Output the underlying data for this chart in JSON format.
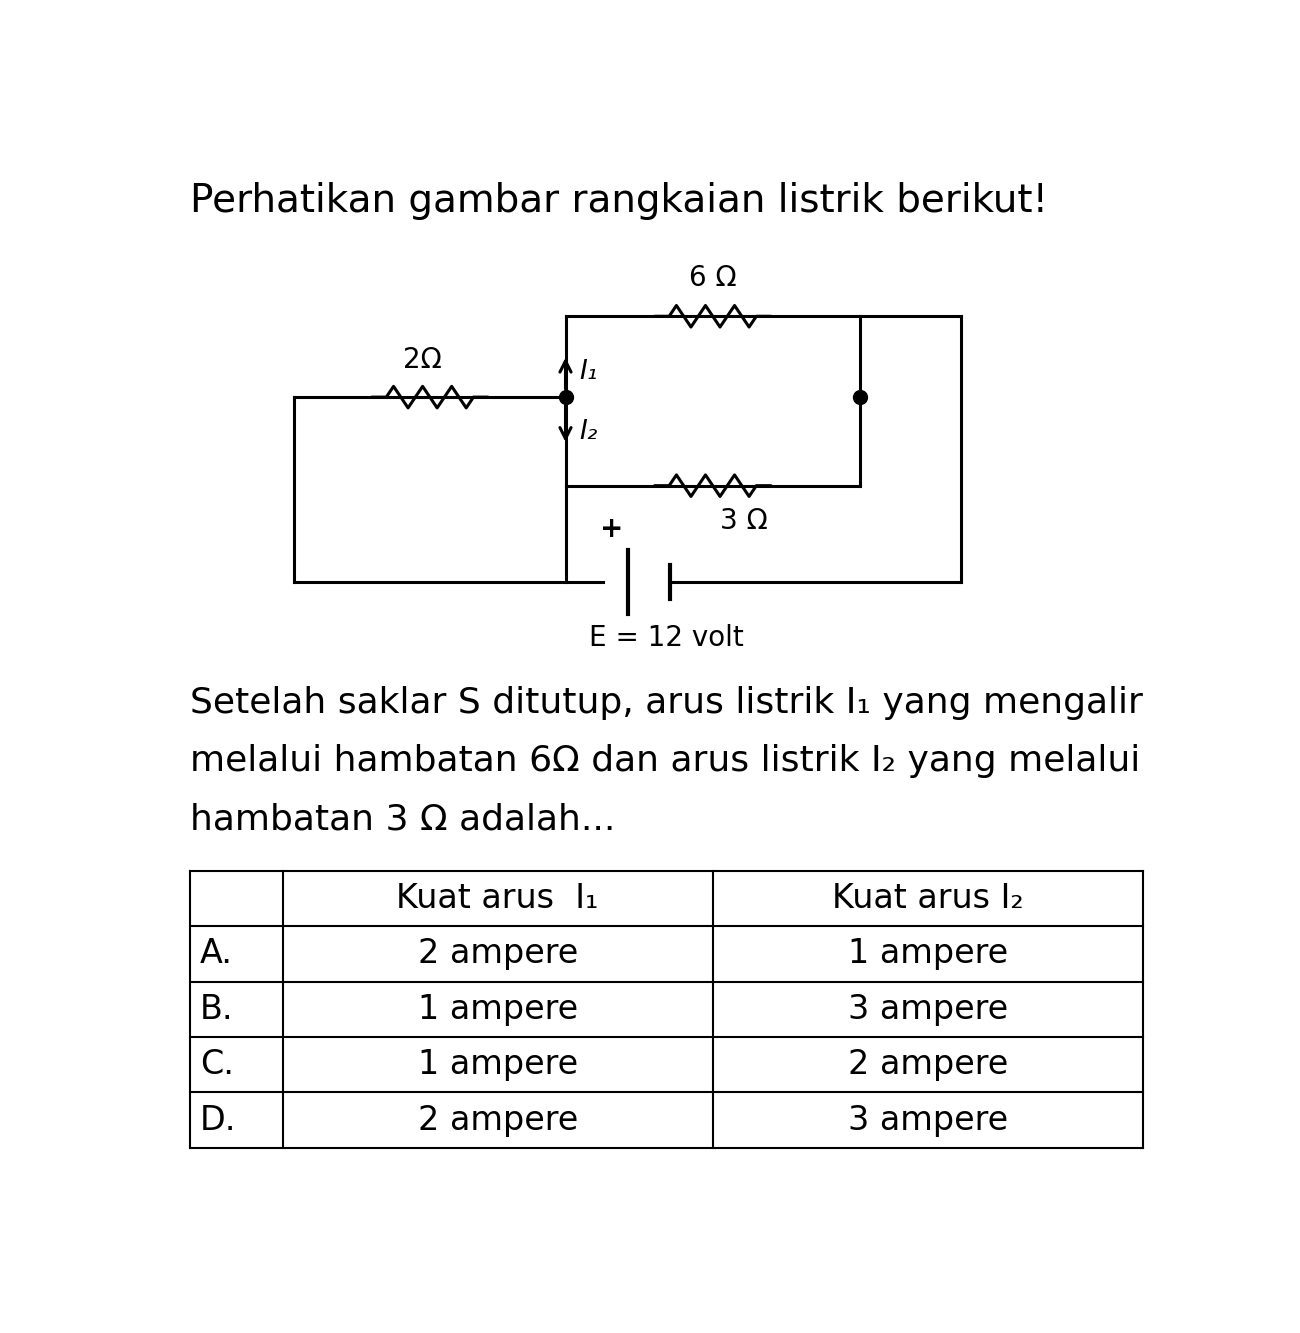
{
  "title": "Perhatikan gambar rangkaian listrik berikut!",
  "title_fontsize": 28,
  "question_fontsize": 26,
  "table_header": [
    "",
    "Kuat arus  I₁",
    "Kuat arus I₂"
  ],
  "table_rows": [
    [
      "A.",
      "2 ampere",
      "1 ampere"
    ],
    [
      "B.",
      "1 ampere",
      "3 ampere"
    ],
    [
      "C.",
      "1 ampere",
      "2 ampere"
    ],
    [
      "D.",
      "2 ampere",
      "3 ampere"
    ]
  ],
  "table_fontsize": 24,
  "background_color": "#ffffff",
  "line_color": "#000000",
  "circuit": {
    "R1_label": "2Ω",
    "R2_label": "6 Ω",
    "R3_label": "3 Ω",
    "battery_label": "E = 12 volt",
    "I1_label": "I₁",
    "I2_label": "I₂"
  }
}
